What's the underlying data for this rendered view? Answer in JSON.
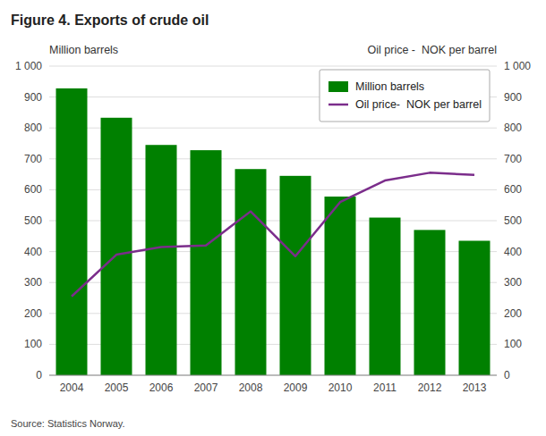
{
  "chart_data": {
    "type": "bar",
    "title": "Figure 4. Exports of crude oil",
    "y_label": "Million barrels",
    "y2_label": "Oil price -  NOK per barrel",
    "source": "Source: Statistics Norway.",
    "categories": [
      "2004",
      "2005",
      "2006",
      "2007",
      "2008",
      "2009",
      "2010",
      "2011",
      "2012",
      "2013"
    ],
    "series": [
      {
        "name": "Million barrels",
        "type": "bar",
        "color": "#008000",
        "values": [
          928,
          833,
          745,
          728,
          667,
          645,
          578,
          510,
          470,
          435
        ]
      },
      {
        "name": "Oil price-  NOK per barrel",
        "type": "line",
        "color": "#7B2D8B",
        "axis": "y2",
        "values": [
          255,
          390,
          415,
          420,
          530,
          385,
          560,
          630,
          655,
          648
        ]
      }
    ],
    "ylim": [
      0,
      1000
    ],
    "yticks": [
      0,
      100,
      200,
      300,
      400,
      500,
      600,
      700,
      800,
      900,
      {
        "value": 1000,
        "label": "1 000"
      }
    ],
    "y2lim": [
      0,
      1000
    ],
    "y2ticks": [
      0,
      100,
      200,
      300,
      400,
      500,
      600,
      700,
      800,
      900,
      {
        "value": 1000,
        "label": "1 000"
      }
    ],
    "grid": true,
    "legend": "upper right"
  }
}
